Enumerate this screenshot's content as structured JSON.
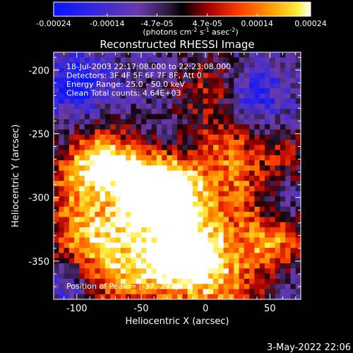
{
  "colorbar": {
    "tick_values": [
      -0.00024,
      -0.00014,
      -4.7e-05,
      4.7e-05,
      0.00014,
      0.00024
    ],
    "tick_labels": [
      "-0.00024",
      "-0.00014",
      "-4.7e-05",
      "4.7e-05",
      "0.00014",
      "0.00024"
    ],
    "range": [
      -0.00024,
      0.00024
    ],
    "unit_label_prefix": "(photons cm",
    "unit_sup1": "-2",
    "unit_mid": " s",
    "unit_sup2": "-1",
    "unit_mid2": " asec",
    "unit_sup3": "-2",
    "unit_suffix": ")",
    "colormap": "blue-purple-black-red-orange-yellow-white"
  },
  "chart_data": {
    "type": "heatmap",
    "title": "Reconstructed RHESSI Image",
    "xlabel": "Heliocentric X (arcsec)",
    "ylabel": "Heliocentric Y (arcsec)",
    "xlim": [
      -118,
      74
    ],
    "ylim": [
      -380,
      -186
    ],
    "xticks": [
      -100,
      -50,
      0,
      50
    ],
    "yticks": [
      -200,
      -250,
      -300,
      -350
    ],
    "xtick_labels": [
      "-100",
      "-50",
      "0",
      "50"
    ],
    "ytick_labels": [
      "-200",
      "-250",
      "-300",
      "-350"
    ],
    "annotations": [
      "18-Jul-2003 22:17:08.000 to 22:23:08.000",
      "Detectors: 3F 4F 5F 6F 7F 8F, Att 0",
      "Energy Range: 25.0 - 50.0 keV",
      "Clean     Total counts: 4.64E+03"
    ],
    "peak_label": "Position of Peak = [-37,-297]",
    "peak_position": [
      -37,
      -297
    ],
    "sources": [
      {
        "x": -78,
        "y": -272,
        "value": 1.0
      },
      {
        "x": -42,
        "y": -291,
        "value": 0.95
      },
      {
        "x": -22,
        "y": -298,
        "value": 0.9
      },
      {
        "x": -30,
        "y": -352,
        "value": 0.9
      },
      {
        "x": -5,
        "y": -337,
        "value": 0.75
      },
      {
        "x": 52,
        "y": -340,
        "value": 0.7
      },
      {
        "x": -95,
        "y": -330,
        "value": 0.6
      },
      {
        "x": 15,
        "y": -262,
        "value": 0.55
      },
      {
        "x": -105,
        "y": -290,
        "value": 0.45
      },
      {
        "x": 30,
        "y": -300,
        "value": 0.5
      },
      {
        "x": -60,
        "y": -320,
        "value": 0.55
      },
      {
        "x": 0,
        "y": -215,
        "value": 0.4
      },
      {
        "x": 10,
        "y": -370,
        "value": 0.5
      },
      {
        "x": 60,
        "y": -270,
        "value": 0.35
      },
      {
        "x": -70,
        "y": -360,
        "value": 0.5
      }
    ],
    "negative_regions": [
      {
        "x": -100,
        "y": -212,
        "value": -0.7
      },
      {
        "x": 40,
        "y": -220,
        "value": -0.5
      },
      {
        "x": 55,
        "y": -300,
        "value": -0.4
      },
      {
        "x": -108,
        "y": -370,
        "value": -0.5
      },
      {
        "x": 65,
        "y": -360,
        "value": -0.45
      }
    ]
  },
  "footer": {
    "timestamp": "3-May-2022 22:06"
  }
}
